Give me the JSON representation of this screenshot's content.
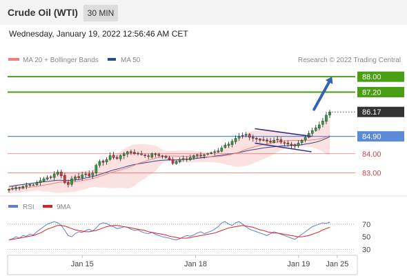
{
  "header": {
    "title": "Crude Oil (WTI)",
    "timeframe": "30 MIN",
    "datetime": "Wednesday, January 19, 2022 12:56:46 AM CET"
  },
  "legend": {
    "ma20_label": "MA 20 + Bollinger Bands",
    "ma50_label": "MA 50",
    "credit": "Research © 2022 Trading Central",
    "rsi_label": "RSI",
    "ma9_label": "9MA"
  },
  "colors": {
    "green_level": "#4a9e14",
    "blue_level": "#5b8ad6",
    "red_level": "#d04040",
    "current_price": "#333333",
    "ma20": "#f08080",
    "ma50": "#2a4a8a",
    "bollinger_fill": "#fbdcdc",
    "rsi": "#5b7fd6",
    "rsi_ma": "#e02020",
    "arrow": "#2f63b4"
  },
  "chart_data": [
    {
      "type": "candlestick",
      "title": "",
      "xlabel": "",
      "ylabel": "",
      "ylim": [
        82.2,
        88.4
      ],
      "x_ticks": [
        "Jan 15",
        "Jan 18",
        "Jan 19",
        "Jan 25"
      ],
      "x_tick_pos": [
        4,
        48,
        88,
        103
      ],
      "x_range": [
        -25,
        110
      ],
      "levels": [
        {
          "label": "88.00",
          "value": 88.0,
          "style": "green-box"
        },
        {
          "label": "87.20",
          "value": 87.2,
          "style": "green-box"
        },
        {
          "label": "86.17",
          "value": 86.17,
          "style": "current"
        },
        {
          "label": "84.90",
          "value": 84.9,
          "style": "blue-box"
        },
        {
          "label": "84.00",
          "value": 84.0,
          "style": "red-text"
        },
        {
          "label": "83.00",
          "value": 83.0,
          "style": "red-text"
        }
      ],
      "closes": [
        82.15,
        82.2,
        82.25,
        82.22,
        82.3,
        82.35,
        82.4,
        82.38,
        82.5,
        82.6,
        82.7,
        82.75,
        82.8,
        82.95,
        83.05,
        82.85,
        82.5,
        82.4,
        82.7,
        82.8,
        82.75,
        82.9,
        82.95,
        82.85,
        83.0,
        83.4,
        83.6,
        83.55,
        83.7,
        83.9,
        83.8,
        83.75,
        83.9,
        84.0,
        84.1,
        84.05,
        84.0,
        84.0,
        83.95,
        83.9,
        83.85,
        84.0,
        83.95,
        83.9,
        83.85,
        83.8,
        83.7,
        83.5,
        83.6,
        83.7,
        83.75,
        83.7,
        83.8,
        83.9,
        83.95,
        83.9,
        83.95,
        84.0,
        84.05,
        84.1,
        84.15,
        84.3,
        84.45,
        84.5,
        84.65,
        84.8,
        84.9,
        84.95,
        85.0,
        84.85,
        84.8,
        84.75,
        84.7,
        84.7,
        84.65,
        84.6,
        84.7,
        84.75,
        84.6,
        84.55,
        84.5,
        84.45,
        84.4,
        84.55,
        84.7,
        84.85,
        85.05,
        85.2,
        85.35,
        85.5,
        85.7,
        86.0,
        86.17
      ],
      "ma50": [
        82.3,
        82.32,
        82.35,
        82.38,
        82.4,
        82.43,
        82.45,
        82.48,
        82.5,
        82.52,
        82.54,
        82.56,
        82.58,
        82.6,
        82.62,
        82.62,
        82.6,
        82.6,
        82.62,
        82.64,
        82.66,
        82.7,
        82.74,
        82.78,
        82.82,
        82.86,
        82.92,
        82.98,
        83.04,
        83.1,
        83.16,
        83.2,
        83.25,
        83.3,
        83.35,
        83.4,
        83.44,
        83.47,
        83.5,
        83.53,
        83.56,
        83.59,
        83.62,
        83.64,
        83.66,
        83.67,
        83.68,
        83.68,
        83.68,
        83.69,
        83.7,
        83.71,
        83.72,
        83.74,
        83.76,
        83.78,
        83.8,
        83.82,
        83.85,
        83.88,
        83.9,
        83.92,
        83.95,
        83.98,
        84.0,
        84.03,
        84.06,
        84.1,
        84.14,
        84.18,
        84.21,
        84.24,
        84.27,
        84.3,
        84.32,
        84.34,
        84.36,
        84.38,
        84.4,
        84.41,
        84.42,
        84.43,
        84.44,
        84.45,
        84.47,
        84.5,
        84.53,
        84.56,
        84.6,
        84.65,
        84.72,
        84.8,
        84.88
      ],
      "channel": {
        "top": [
          [
            71,
            85.3
          ],
          [
            93,
            84.9
          ]
        ],
        "bottom": [
          [
            71,
            84.55
          ],
          [
            93,
            84.1
          ]
        ]
      },
      "arrow": {
        "from": [
          94,
          86.3
        ],
        "to": [
          101,
          88.0
        ]
      }
    },
    {
      "type": "line",
      "title": "",
      "ylim": [
        22,
        85
      ],
      "y_ticks": [
        70,
        50,
        30
      ],
      "series": [
        {
          "name": "RSI",
          "values": [
            45,
            47,
            50,
            48,
            52,
            51,
            54,
            53,
            58,
            62,
            66,
            70,
            72,
            74,
            72,
            68,
            60,
            52,
            50,
            55,
            58,
            57,
            60,
            62,
            59,
            64,
            70,
            72,
            71,
            68,
            66,
            63,
            64,
            66,
            65,
            62,
            60,
            61,
            58,
            56,
            55,
            57,
            54,
            52,
            50,
            49,
            48,
            46,
            45,
            47,
            50,
            52,
            51,
            53,
            56,
            58,
            55,
            57,
            59,
            62,
            66,
            72,
            74,
            70,
            68,
            72,
            74,
            70,
            66,
            62,
            60,
            58,
            56,
            54,
            52,
            55,
            58,
            56,
            54,
            52,
            50,
            48,
            46,
            50,
            54,
            58,
            62,
            66,
            68,
            70,
            72,
            71,
            73
          ]
        },
        {
          "name": "9MA",
          "values": [
            45,
            46,
            47,
            48,
            49,
            50,
            51,
            52,
            54,
            56,
            59,
            62,
            64,
            66,
            68,
            68,
            67,
            65,
            63,
            61,
            60,
            59,
            58,
            58,
            59,
            60,
            62,
            64,
            66,
            67,
            68,
            68,
            67,
            66,
            65,
            64,
            63,
            62,
            61,
            60,
            58,
            57,
            56,
            55,
            54,
            53,
            51,
            50,
            49,
            48,
            48,
            48,
            49,
            50,
            51,
            52,
            53,
            54,
            55,
            56,
            58,
            60,
            62,
            64,
            65,
            66,
            67,
            68,
            67,
            66,
            65,
            63,
            61,
            60,
            58,
            57,
            56,
            56,
            55,
            54,
            53,
            52,
            51,
            50,
            50,
            51,
            52,
            54,
            56,
            58,
            61,
            63,
            65
          ]
        }
      ]
    }
  ]
}
